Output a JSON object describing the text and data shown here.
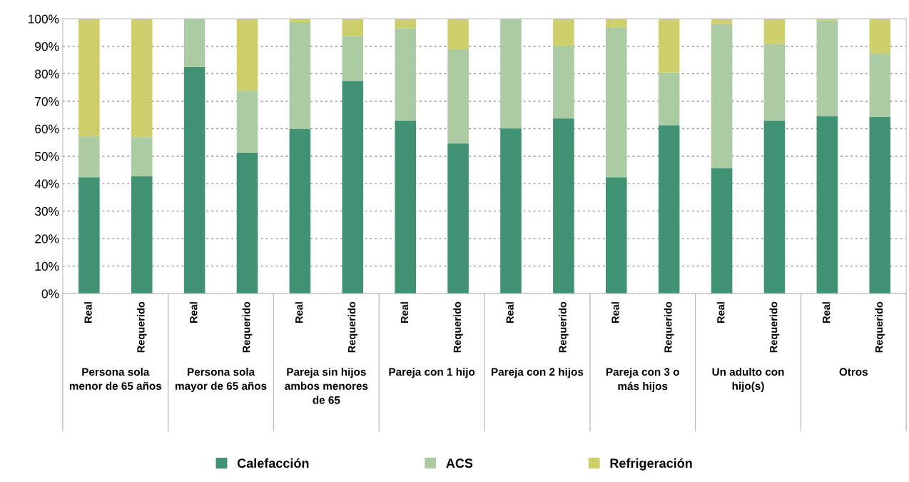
{
  "chart_data": {
    "type": "bar",
    "stacked": true,
    "categories": [
      "Real",
      "Requerido",
      "Real",
      "Requerido",
      "Real",
      "Requerido",
      "Real",
      "Requerido",
      "Real",
      "Requerido",
      "Real",
      "Requerido",
      "Real",
      "Requerido",
      "Real",
      "Requerido"
    ],
    "series": [
      {
        "name": "Calefacción",
        "color": "#3f9373",
        "values": [
          42.3,
          42.8,
          82.5,
          51.2,
          59.9,
          77.4,
          63.0,
          54.7,
          60.2,
          63.7,
          42.3,
          61.3,
          45.7,
          63.0,
          64.6,
          64.3
        ]
      },
      {
        "name": "ACS",
        "color": "#abcca3",
        "values": [
          15.0,
          14.1,
          17.5,
          22.6,
          38.9,
          16.4,
          33.6,
          34.2,
          39.8,
          26.4,
          54.6,
          19.1,
          52.4,
          27.8,
          34.8,
          23.1
        ]
      },
      {
        "name": "Refrigeración",
        "color": "#cdd06a",
        "values": [
          42.7,
          43.1,
          0,
          26.2,
          1.2,
          6.2,
          3.4,
          11.1,
          0,
          9.9,
          3.1,
          19.6,
          1.9,
          9.2,
          0.6,
          12.6
        ]
      }
    ],
    "annotations": [
      "Persona sola\nmenor de 65 años",
      "Persona sola\nmayor de 65 años",
      "Pareja sin hijos\nambos menores\nde 65",
      "Pareja con 1 hijo",
      "Pareja con 2 hijos",
      "Pareja con 3 o\nmás hijos",
      "Un adulto con\nhijo(s)",
      "Otros"
    ],
    "ylim": [
      0,
      100
    ],
    "yticks": [
      {
        "value": 0,
        "label": "0%"
      },
      {
        "value": 10,
        "label": "10%"
      },
      {
        "value": 20,
        "label": "20%"
      },
      {
        "value": 30,
        "label": "30%"
      },
      {
        "value": 40,
        "label": "40%"
      },
      {
        "value": 50,
        "label": "50%"
      },
      {
        "value": 60,
        "label": "60%"
      },
      {
        "value": 70,
        "label": "70%"
      },
      {
        "value": 80,
        "label": "80%"
      },
      {
        "value": 90,
        "label": "90%"
      },
      {
        "value": 100,
        "label": "100%"
      }
    ],
    "grid": "y",
    "legend": "bottom"
  }
}
